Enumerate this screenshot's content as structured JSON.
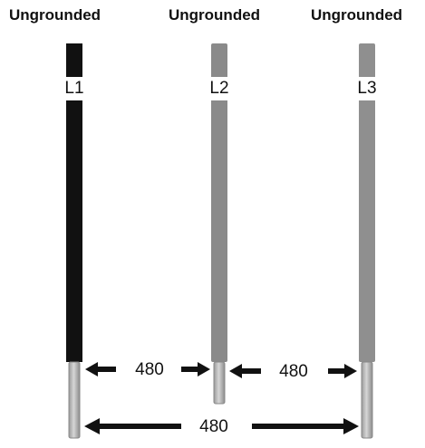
{
  "conductors": [
    {
      "heading": "Ungrounded",
      "label": "L1",
      "color": "#111111"
    },
    {
      "heading": "Ungrounded",
      "label": "L2",
      "color": "#8a8a8a"
    },
    {
      "heading": "Ungrounded",
      "label": "L3",
      "color": "#8f8f8f"
    }
  ],
  "voltages": {
    "l1_l2": "480",
    "l2_l3": "480",
    "l1_l3": "480"
  },
  "colors": {
    "stripped_end": "#c4c4c4",
    "arrow": "#111111"
  }
}
